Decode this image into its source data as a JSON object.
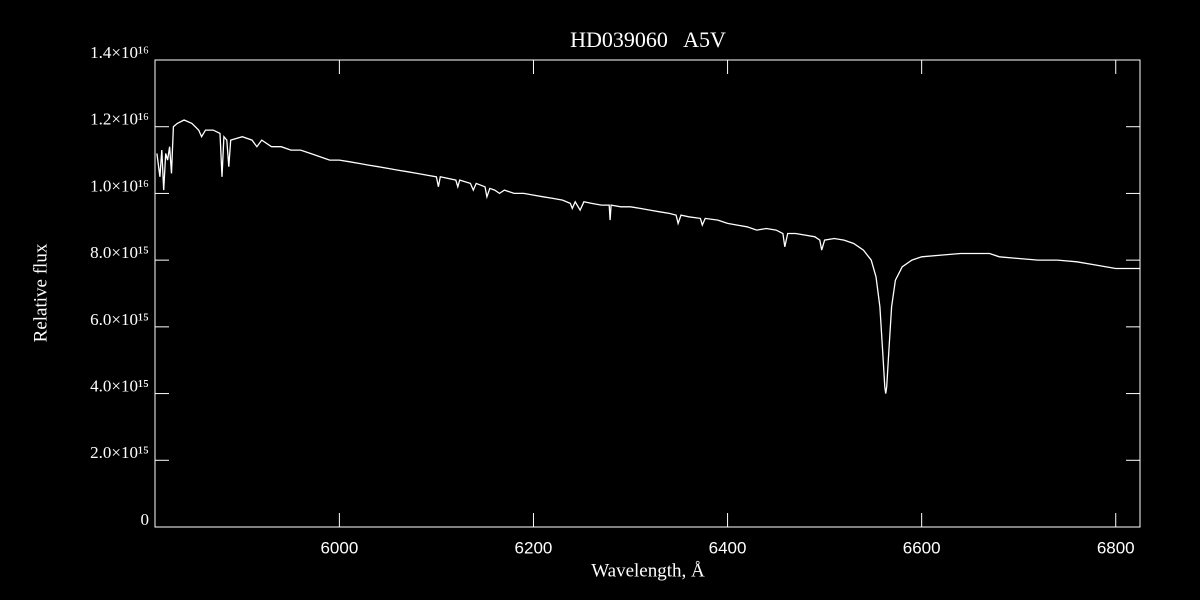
{
  "chart_data": {
    "type": "line",
    "title": "HD039060   A5V",
    "x_label": "Wavelength, Å",
    "y_label": "Relative flux",
    "color": "#ffffff",
    "xlim": [
      5810,
      6825
    ],
    "ylim": [
      0,
      1.4e+16
    ],
    "xticks": [
      6000,
      6200,
      6400,
      6600,
      6800
    ],
    "yticks": [
      0,
      {
        "value": 2000000000000000.0,
        "label": "2.0×10¹⁵"
      },
      {
        "value": 4000000000000000.0,
        "label": "4.0×10¹⁵"
      },
      {
        "value": 6000000000000000.0,
        "label": "6.0×10¹⁵"
      },
      {
        "value": 8000000000000000.0,
        "label": "8.0×10¹⁵"
      },
      {
        "value": 1e+16,
        "label": "1.0×10¹⁶"
      },
      {
        "value": 1.2e+16,
        "label": "1.2×10¹⁶"
      },
      {
        "value": 1.4e+16,
        "label": "1.4×10¹⁶"
      }
    ],
    "x": [
      5812,
      5815,
      5817,
      5819,
      5821,
      5823,
      5825,
      5827,
      5829,
      5833,
      5840,
      5848,
      5855,
      5858,
      5862,
      5870,
      5877,
      5879,
      5881,
      5884,
      5886,
      5888,
      5900,
      5910,
      5915,
      5920,
      5930,
      5940,
      5950,
      5960,
      5970,
      5980,
      5990,
      6000,
      6010,
      6020,
      6030,
      6040,
      6050,
      6060,
      6070,
      6080,
      6090,
      6100,
      6102,
      6104,
      6120,
      6122,
      6124,
      6135,
      6138,
      6141,
      6150,
      6152,
      6155,
      6160,
      6165,
      6170,
      6180,
      6190,
      6200,
      6210,
      6220,
      6230,
      6238,
      6240,
      6243,
      6248,
      6252,
      6260,
      6270,
      6278,
      6279,
      6280,
      6290,
      6300,
      6310,
      6320,
      6330,
      6340,
      6347,
      6349,
      6352,
      6360,
      6372,
      6374,
      6377,
      6390,
      6400,
      6410,
      6420,
      6430,
      6440,
      6450,
      6457,
      6459,
      6462,
      6470,
      6480,
      6490,
      6495,
      6497,
      6500,
      6510,
      6520,
      6530,
      6540,
      6548,
      6553,
      6557,
      6560,
      6562,
      6563,
      6564,
      6566,
      6569,
      6573,
      6580,
      6590,
      6600,
      6620,
      6640,
      6660,
      6670,
      6680,
      6700,
      6720,
      6740,
      6760,
      6780,
      6800,
      6825
    ],
    "values": [
      1.12e+16,
      1.05e+16,
      1.13e+16,
      1.01e+16,
      1.12e+16,
      1.1e+16,
      1.14e+16,
      1.06e+16,
      1.2e+16,
      1.21e+16,
      1.22e+16,
      1.21e+16,
      1.19e+16,
      1.17e+16,
      1.19e+16,
      1.19e+16,
      1.18e+16,
      1.05e+16,
      1.17e+16,
      1.16e+16,
      1.08e+16,
      1.16e+16,
      1.17e+16,
      1.16e+16,
      1.14e+16,
      1.16e+16,
      1.14e+16,
      1.14e+16,
      1.13e+16,
      1.13e+16,
      1.12e+16,
      1.11e+16,
      1.1e+16,
      1.1e+16,
      1.095e+16,
      1.09e+16,
      1.085e+16,
      1.08e+16,
      1.075e+16,
      1.07e+16,
      1.065e+16,
      1.06e+16,
      1.055e+16,
      1.05e+16,
      1.02e+16,
      1.05e+16,
      1.04e+16,
      1.02e+16,
      1.04e+16,
      1.03e+16,
      1.01e+16,
      1.03e+16,
      1.02e+16,
      9900000000000000.0,
      1.015e+16,
      1.01e+16,
      1e+16,
      1.01e+16,
      1e+16,
      1e+16,
      9950000000000000.0,
      9900000000000000.0,
      9850000000000000.0,
      9800000000000000.0,
      9700000000000000.0,
      9550000000000000.0,
      9750000000000000.0,
      9500000000000000.0,
      9750000000000000.0,
      9700000000000000.0,
      9650000000000000.0,
      9650000000000000.0,
      9200000000000000.0,
      9650000000000000.0,
      9600000000000000.0,
      9600000000000000.0,
      9550000000000000.0,
      9500000000000000.0,
      9450000000000000.0,
      9400000000000000.0,
      9350000000000000.0,
      9100000000000000.0,
      9350000000000000.0,
      9300000000000000.0,
      9250000000000000.0,
      9050000000000000.0,
      9250000000000000.0,
      9200000000000000.0,
      9100000000000000.0,
      9050000000000000.0,
      9000000000000000.0,
      8900000000000000.0,
      8950000000000000.0,
      8900000000000000.0,
      8800000000000000.0,
      8400000000000000.0,
      8800000000000000.0,
      8800000000000000.0,
      8750000000000000.0,
      8700000000000000.0,
      8600000000000000.0,
      8300000000000000.0,
      8600000000000000.0,
      8650000000000000.0,
      8600000000000000.0,
      8500000000000000.0,
      8300000000000000.0,
      8000000000000000.0,
      7500000000000000.0,
      6600000000000000.0,
      5200000000000000.0,
      4200000000000000.0,
      4000000000000000.0,
      4200000000000000.0,
      5200000000000000.0,
      6600000000000000.0,
      7400000000000000.0,
      7800000000000000.0,
      8000000000000000.0,
      8100000000000000.0,
      8150000000000000.0,
      8200000000000000.0,
      8200000000000000.0,
      8200000000000000.0,
      8100000000000000.0,
      8050000000000000.0,
      8000000000000000.0,
      8000000000000000.0,
      7950000000000000.0,
      7850000000000000.0,
      7750000000000000.0,
      7750000000000000.0
    ]
  }
}
